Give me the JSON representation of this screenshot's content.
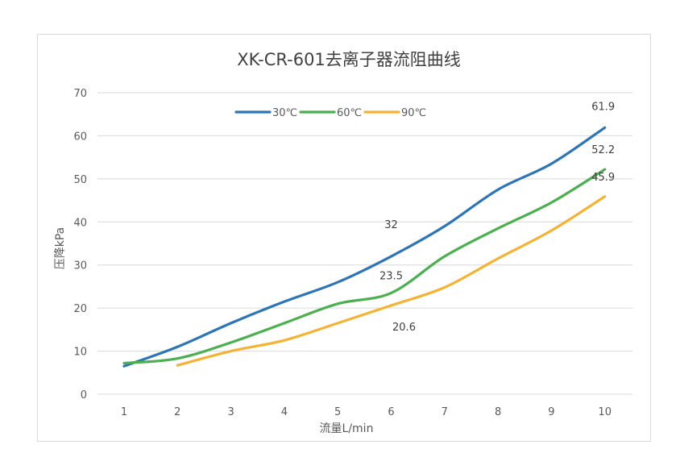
{
  "chart_data": {
    "type": "line",
    "title": "XK-CR-601去离子器流阻曲线",
    "xlabel": "流量L/min",
    "ylabel": "压降kPa",
    "categories": [
      "1",
      "2",
      "3",
      "4",
      "5",
      "6",
      "7",
      "8",
      "9",
      "10"
    ],
    "ylim": [
      0,
      70
    ],
    "yticks": [
      0,
      10,
      20,
      30,
      40,
      50,
      60,
      70
    ],
    "grid": true,
    "legend_position": "top",
    "series": [
      {
        "name": "30℃",
        "color": "#2e75b6",
        "x": [
          1,
          2,
          3,
          4,
          5,
          6,
          7,
          8,
          9,
          10
        ],
        "values": [
          6.5,
          11,
          16.5,
          21.5,
          26,
          32,
          39,
          47.5,
          53.5,
          61.9
        ]
      },
      {
        "name": "60℃",
        "color": "#4caf50",
        "x": [
          1,
          2,
          3,
          4,
          5,
          6,
          7,
          8,
          9,
          10
        ],
        "values": [
          7.2,
          8.3,
          12,
          16.5,
          21,
          23.5,
          32,
          38.5,
          44.5,
          52.2
        ]
      },
      {
        "name": "90℃",
        "color": "#f5b335",
        "x": [
          2,
          3,
          4,
          5,
          6,
          7,
          8,
          9,
          10
        ],
        "values": [
          6.7,
          10,
          12.5,
          16.5,
          20.6,
          24.8,
          31.5,
          38,
          45.9
        ]
      }
    ],
    "data_labels": [
      {
        "text": "61.9",
        "x": 10,
        "y": 61.9
      },
      {
        "text": "52.2",
        "x": 10,
        "y": 52.2
      },
      {
        "text": "45.9",
        "x": 10,
        "y": 45.9
      },
      {
        "text": "32",
        "x": 6,
        "y": 32
      },
      {
        "text": "23.5",
        "x": 6,
        "y": 23.5
      },
      {
        "text": "20.6",
        "x": 6,
        "y": 20.6
      }
    ]
  }
}
